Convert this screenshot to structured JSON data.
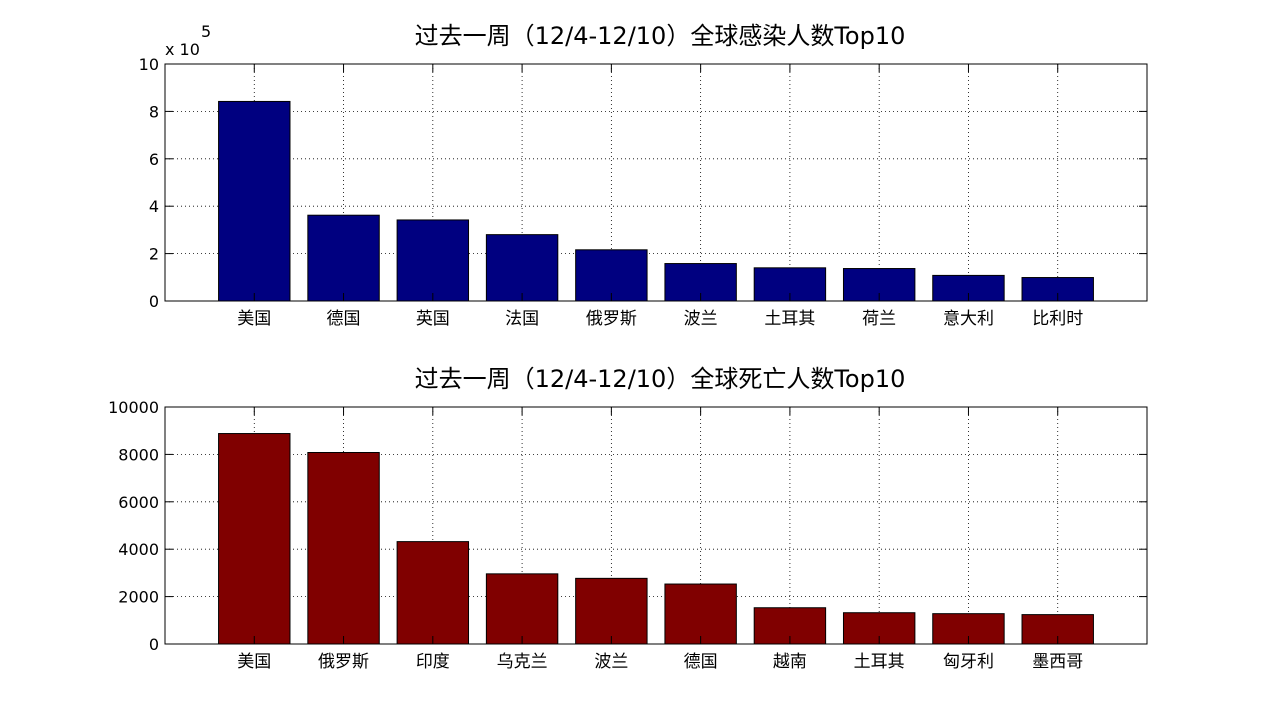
{
  "chart_data": [
    {
      "type": "bar",
      "title": "过去一周（12/4-12/10）全球感染人数Top10",
      "categories": [
        "美国",
        "德国",
        "英国",
        "法国",
        "俄罗斯",
        "波兰",
        "土耳其",
        "荷兰",
        "意大利",
        "比利时"
      ],
      "values": [
        842000,
        362000,
        342000,
        280000,
        216000,
        158000,
        140000,
        137000,
        108000,
        99000
      ],
      "ylim": [
        0,
        1000000
      ],
      "yticks": [
        "0",
        "2",
        "4",
        "6",
        "8",
        "10"
      ],
      "yscale_label": "x 10",
      "yscale_exponent": "5",
      "xlabel": "",
      "ylabel": "",
      "grid": true,
      "bar_color": "#000080"
    },
    {
      "type": "bar",
      "title": "过去一周（12/4-12/10）全球死亡人数Top10",
      "categories": [
        "美国",
        "俄罗斯",
        "印度",
        "乌克兰",
        "波兰",
        "德国",
        "越南",
        "土耳其",
        "匈牙利",
        "墨西哥"
      ],
      "values": [
        8880,
        8080,
        4320,
        2960,
        2770,
        2530,
        1530,
        1320,
        1280,
        1240
      ],
      "ylim": [
        0,
        10000
      ],
      "yticks": [
        "0",
        "2000",
        "4000",
        "6000",
        "8000",
        "10000"
      ],
      "xlabel": "",
      "ylabel": "",
      "grid": true,
      "bar_color": "#800000"
    }
  ]
}
